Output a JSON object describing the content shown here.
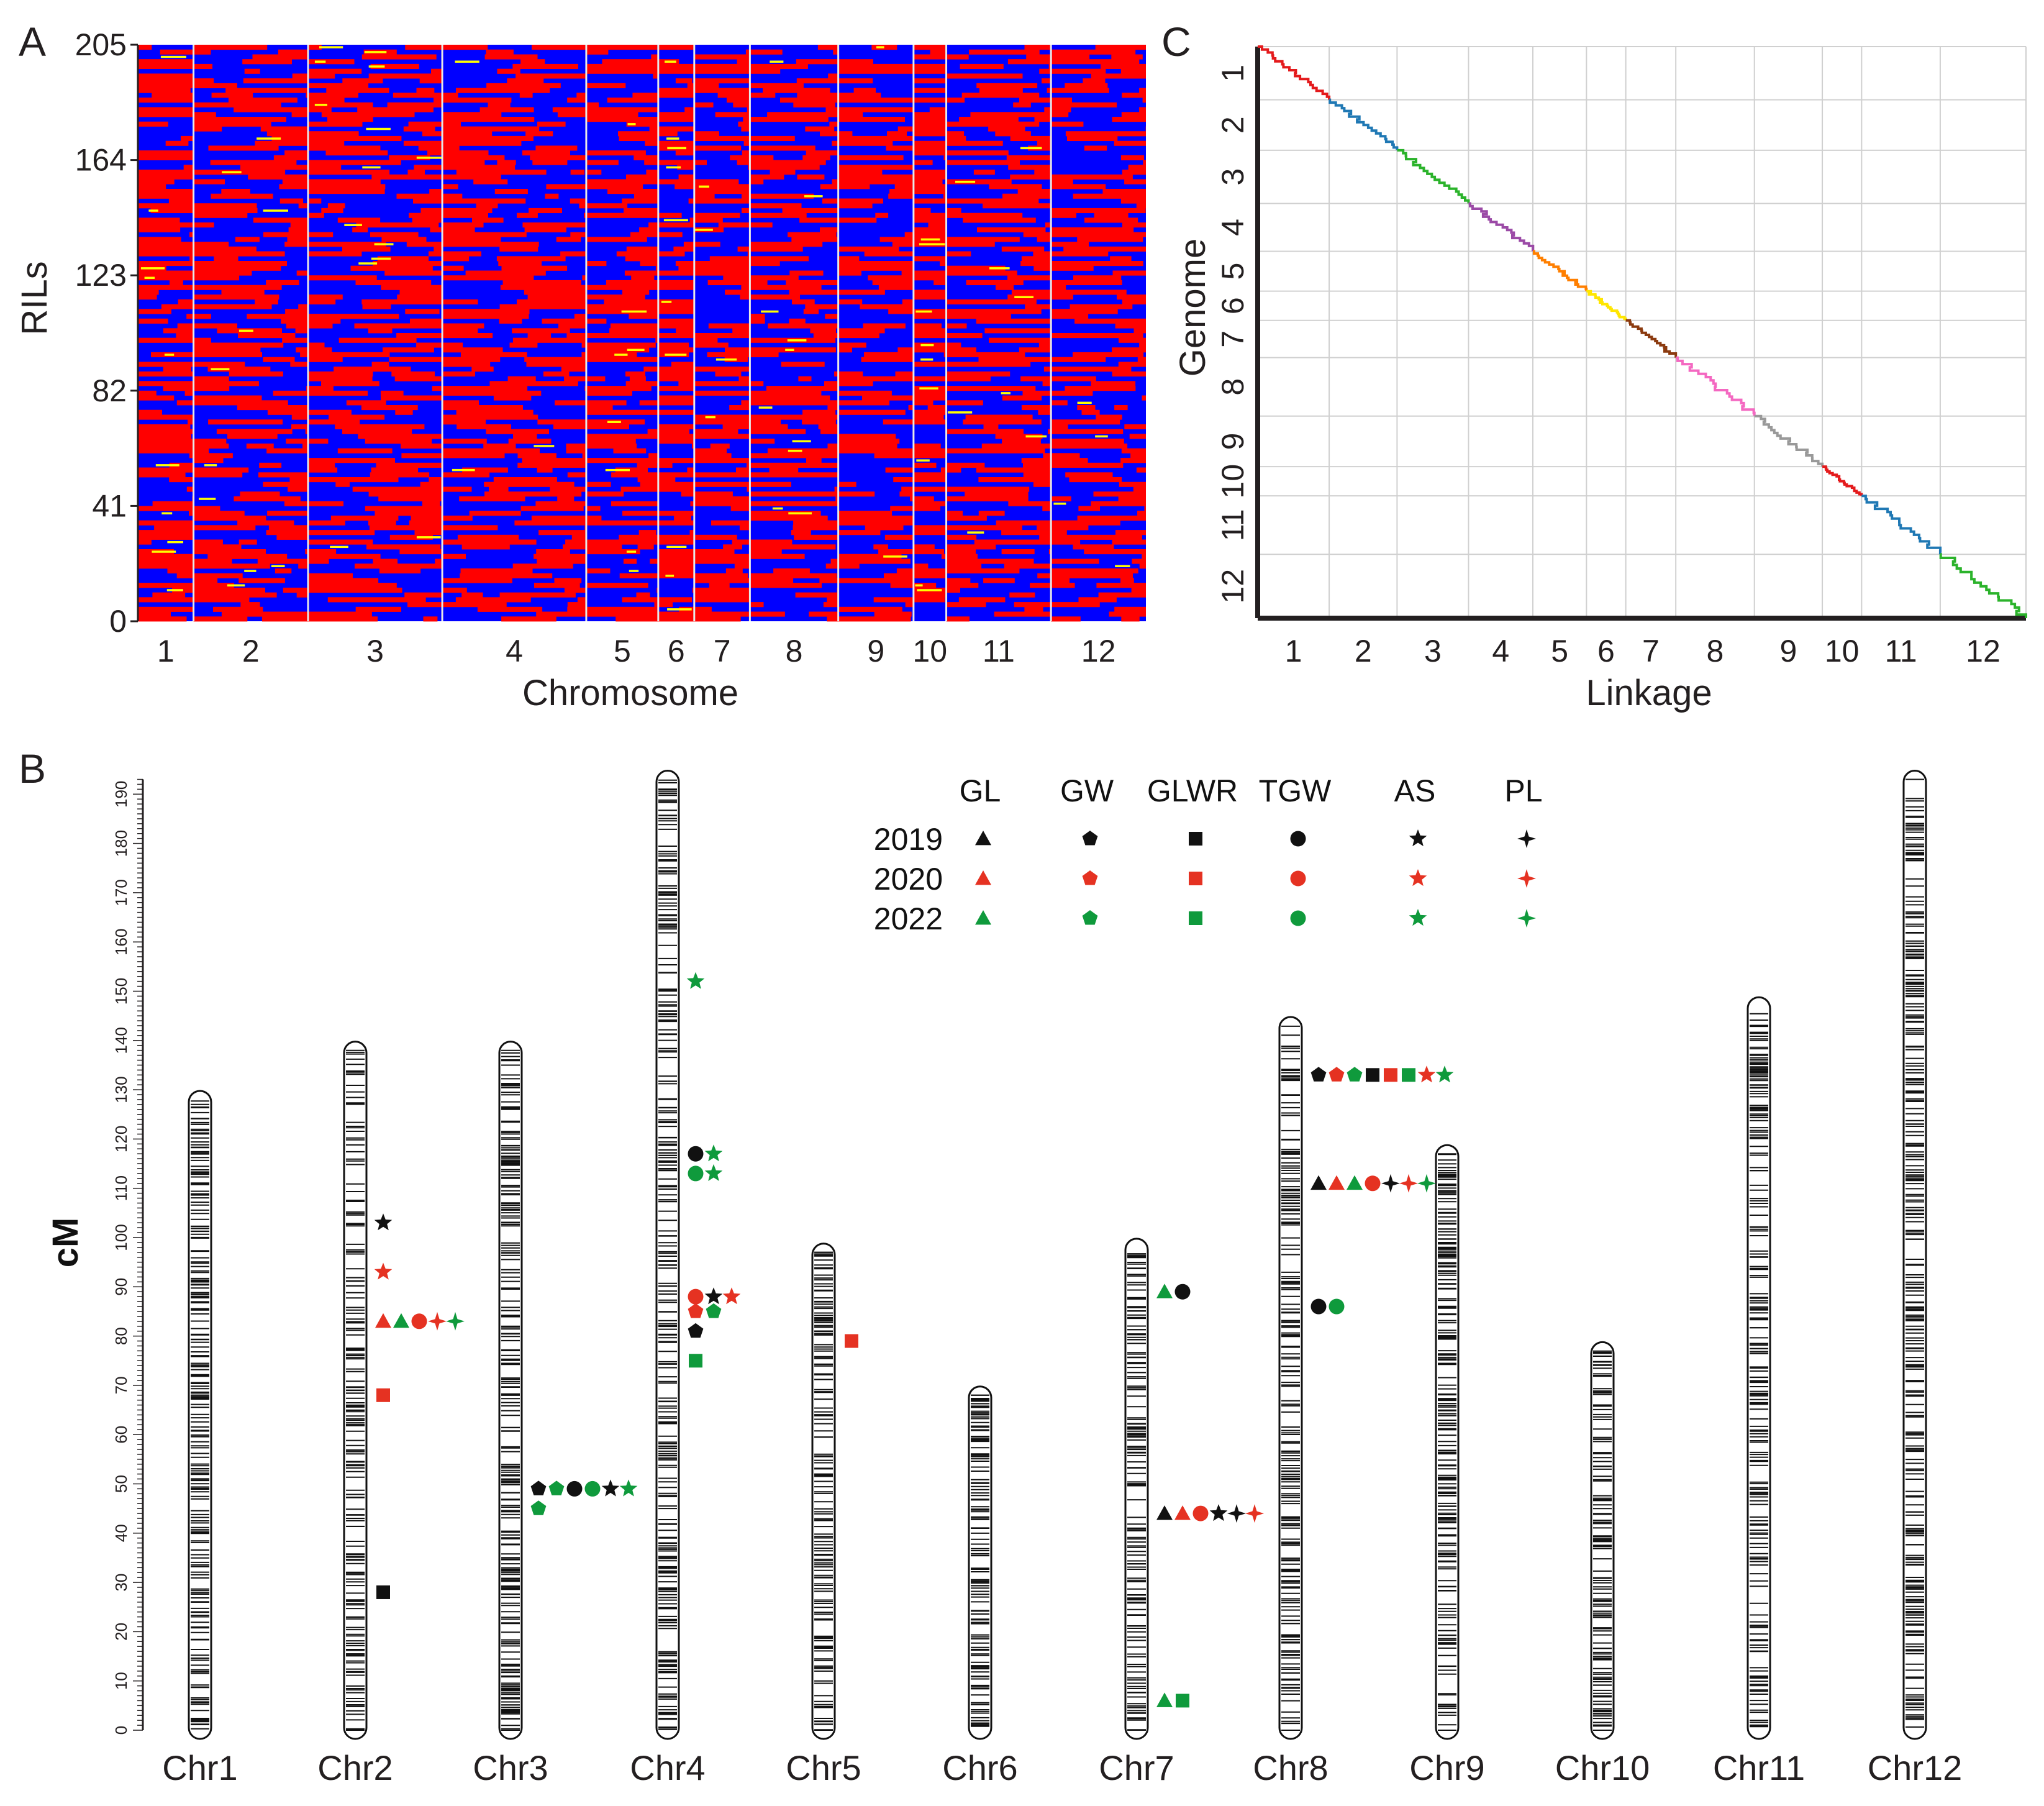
{
  "colors": {
    "parentA": "#ff0000",
    "parentB": "#0000ff",
    "heterozygous": "#ffff00",
    "text": "#231f20",
    "year_2019": "#111111",
    "year_2020": "#e53222",
    "year_2022": "#0f9a3c",
    "linkage_chr": [
      "#e41a1c",
      "#1f78b4",
      "#2bb32b",
      "#9b4aa6",
      "#ff7f00",
      "#ffe600",
      "#8b3a0f",
      "#f468c1",
      "#999999",
      "#e41a1c",
      "#1f78b4",
      "#2bb32b"
    ]
  },
  "panels": {
    "A": {
      "letter": "A",
      "ylabel": "RILs",
      "xlabel": "Chromosome",
      "y_ticks": [
        "205",
        "164",
        "123",
        "82",
        "41",
        "0"
      ],
      "chromosomes": [
        "1",
        "2",
        "3",
        "4",
        "5",
        "6",
        "7",
        "8",
        "9",
        "10",
        "11",
        "12"
      ]
    },
    "B": {
      "letter": "B",
      "ylabel": "cM",
      "cm_ticks": [
        "0",
        "10",
        "20",
        "30",
        "40",
        "50",
        "60",
        "70",
        "80",
        "90",
        "100",
        "110",
        "120",
        "130",
        "140",
        "150",
        "160",
        "170",
        "180",
        "190"
      ],
      "legend_traits": [
        "GL",
        "GW",
        "GLWR",
        "TGW",
        "AS",
        "PL"
      ],
      "legend_years": [
        "2019",
        "2020",
        "2022"
      ],
      "chromosomes": [
        "Chr1",
        "Chr2",
        "Chr3",
        "Chr4",
        "Chr5",
        "Chr6",
        "Chr7",
        "Chr8",
        "Chr9",
        "Chr10",
        "Chr11",
        "Chr12"
      ]
    },
    "C": {
      "letter": "C",
      "ylabel": "Genome",
      "xlabel": "Linkage",
      "y_ticks": [
        "1",
        "2",
        "3",
        "4",
        "5",
        "6",
        "7",
        "8",
        "9",
        "10",
        "11",
        "12"
      ],
      "x_ticks": [
        "1",
        "2",
        "3",
        "4",
        "5",
        "6",
        "7",
        "8",
        "9",
        "10",
        "11",
        "12"
      ]
    }
  },
  "chart_data": [
    {
      "panel": "A",
      "type": "heatmap",
      "title": "",
      "xlabel": "Chromosome",
      "ylabel": "RILs",
      "ylim": [
        0,
        205
      ],
      "y_ticks": [
        0,
        41,
        82,
        123,
        164,
        205
      ],
      "chromosome_relative_widths": [
        0.85,
        1.75,
        2.05,
        2.2,
        1.1,
        0.55,
        0.85,
        1.35,
        1.15,
        0.5,
        1.6,
        1.45
      ],
      "genotype_legend": []
    },
    {
      "panel": "B",
      "type": "scatter",
      "title": "",
      "ylabel": "cM",
      "ylim": [
        0,
        190
      ],
      "chromosome_length_cM": [
        128,
        138,
        138,
        193,
        97,
        68,
        98,
        143,
        117,
        77,
        147,
        193
      ],
      "qtl": [
        {
          "chr": 2,
          "cM": 103,
          "trait": "AS",
          "year": "2019"
        },
        {
          "chr": 2,
          "cM": 93,
          "trait": "AS",
          "year": "2020"
        },
        {
          "chr": 2,
          "cM": 83,
          "trait": "GL",
          "year": "2020"
        },
        {
          "chr": 2,
          "cM": 83,
          "trait": "GL",
          "year": "2022"
        },
        {
          "chr": 2,
          "cM": 83,
          "trait": "TGW",
          "year": "2020"
        },
        {
          "chr": 2,
          "cM": 83,
          "trait": "PL",
          "year": "2020"
        },
        {
          "chr": 2,
          "cM": 83,
          "trait": "PL",
          "year": "2022"
        },
        {
          "chr": 2,
          "cM": 68,
          "trait": "GLWR",
          "year": "2020"
        },
        {
          "chr": 2,
          "cM": 28,
          "trait": "GLWR",
          "year": "2019"
        },
        {
          "chr": 3,
          "cM": 49,
          "trait": "GW",
          "year": "2019"
        },
        {
          "chr": 3,
          "cM": 49,
          "trait": "GW",
          "year": "2022"
        },
        {
          "chr": 3,
          "cM": 49,
          "trait": "TGW",
          "year": "2019"
        },
        {
          "chr": 3,
          "cM": 49,
          "trait": "TGW",
          "year": "2022"
        },
        {
          "chr": 3,
          "cM": 49,
          "trait": "AS",
          "year": "2019"
        },
        {
          "chr": 3,
          "cM": 49,
          "trait": "AS",
          "year": "2022"
        },
        {
          "chr": 3,
          "cM": 45,
          "trait": "GW",
          "year": "2022"
        },
        {
          "chr": 4,
          "cM": 152,
          "trait": "AS",
          "year": "2022"
        },
        {
          "chr": 4,
          "cM": 117,
          "trait": "TGW",
          "year": "2019"
        },
        {
          "chr": 4,
          "cM": 117,
          "trait": "AS",
          "year": "2022"
        },
        {
          "chr": 4,
          "cM": 113,
          "trait": "TGW",
          "year": "2022"
        },
        {
          "chr": 4,
          "cM": 113,
          "trait": "AS",
          "year": "2022"
        },
        {
          "chr": 4,
          "cM": 88,
          "trait": "TGW",
          "year": "2020"
        },
        {
          "chr": 4,
          "cM": 88,
          "trait": "AS",
          "year": "2019"
        },
        {
          "chr": 4,
          "cM": 88,
          "trait": "AS",
          "year": "2020"
        },
        {
          "chr": 4,
          "cM": 85,
          "trait": "GW",
          "year": "2020"
        },
        {
          "chr": 4,
          "cM": 85,
          "trait": "GW",
          "year": "2022"
        },
        {
          "chr": 4,
          "cM": 81,
          "trait": "GW",
          "year": "2019"
        },
        {
          "chr": 4,
          "cM": 75,
          "trait": "GLWR",
          "year": "2022"
        },
        {
          "chr": 5,
          "cM": 79,
          "trait": "GLWR",
          "year": "2020"
        },
        {
          "chr": 7,
          "cM": 89,
          "trait": "GL",
          "year": "2022"
        },
        {
          "chr": 7,
          "cM": 89,
          "trait": "TGW",
          "year": "2019"
        },
        {
          "chr": 7,
          "cM": 44,
          "trait": "GL",
          "year": "2019"
        },
        {
          "chr": 7,
          "cM": 44,
          "trait": "GL",
          "year": "2020"
        },
        {
          "chr": 7,
          "cM": 44,
          "trait": "TGW",
          "year": "2020"
        },
        {
          "chr": 7,
          "cM": 44,
          "trait": "AS",
          "year": "2019"
        },
        {
          "chr": 7,
          "cM": 44,
          "trait": "PL",
          "year": "2019"
        },
        {
          "chr": 7,
          "cM": 44,
          "trait": "PL",
          "year": "2020"
        },
        {
          "chr": 7,
          "cM": 6,
          "trait": "GL",
          "year": "2022"
        },
        {
          "chr": 7,
          "cM": 6,
          "trait": "GLWR",
          "year": "2022"
        },
        {
          "chr": 8,
          "cM": 133,
          "trait": "GW",
          "year": "2019"
        },
        {
          "chr": 8,
          "cM": 133,
          "trait": "GW",
          "year": "2020"
        },
        {
          "chr": 8,
          "cM": 133,
          "trait": "GW",
          "year": "2022"
        },
        {
          "chr": 8,
          "cM": 133,
          "trait": "GLWR",
          "year": "2019"
        },
        {
          "chr": 8,
          "cM": 133,
          "trait": "GLWR",
          "year": "2020"
        },
        {
          "chr": 8,
          "cM": 133,
          "trait": "GLWR",
          "year": "2022"
        },
        {
          "chr": 8,
          "cM": 133,
          "trait": "AS",
          "year": "2020"
        },
        {
          "chr": 8,
          "cM": 133,
          "trait": "AS",
          "year": "2022"
        },
        {
          "chr": 8,
          "cM": 111,
          "trait": "GL",
          "year": "2019"
        },
        {
          "chr": 8,
          "cM": 111,
          "trait": "GL",
          "year": "2020"
        },
        {
          "chr": 8,
          "cM": 111,
          "trait": "GL",
          "year": "2022"
        },
        {
          "chr": 8,
          "cM": 111,
          "trait": "TGW",
          "year": "2020"
        },
        {
          "chr": 8,
          "cM": 111,
          "trait": "PL",
          "year": "2019"
        },
        {
          "chr": 8,
          "cM": 111,
          "trait": "PL",
          "year": "2020"
        },
        {
          "chr": 8,
          "cM": 111,
          "trait": "PL",
          "year": "2022"
        },
        {
          "chr": 8,
          "cM": 86,
          "trait": "TGW",
          "year": "2019"
        },
        {
          "chr": 8,
          "cM": 86,
          "trait": "TGW",
          "year": "2022"
        }
      ]
    },
    {
      "panel": "C",
      "type": "line",
      "title": "",
      "xlabel": "Linkage",
      "ylabel": "Genome",
      "x_categories": [
        "1",
        "2",
        "3",
        "4",
        "5",
        "6",
        "7",
        "8",
        "9",
        "10",
        "11",
        "12"
      ],
      "y_categories": [
        "1",
        "2",
        "3",
        "4",
        "5",
        "6",
        "7",
        "8",
        "9",
        "10",
        "11",
        "12"
      ],
      "chromosome_relative_sizes": [
        1.0,
        0.95,
        1.0,
        0.9,
        0.75,
        0.55,
        0.7,
        1.1,
        0.95,
        0.55,
        1.1,
        1.2
      ],
      "grid": true
    }
  ]
}
